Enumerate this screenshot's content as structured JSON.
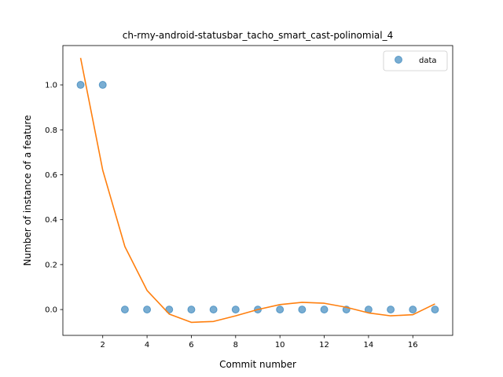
{
  "chart_data": {
    "type": "scatter",
    "title": "ch-rmy-android-statusbar_tacho_smart_cast-polinomial_4",
    "xlabel": "Commit number",
    "ylabel": "Number of instance of a feature",
    "xlim": [
      0.2,
      17.8
    ],
    "ylim": [
      -0.115,
      1.175
    ],
    "x_ticks": [
      2,
      4,
      6,
      8,
      10,
      12,
      14,
      16
    ],
    "y_ticks": [
      0.0,
      0.2,
      0.4,
      0.6,
      0.8,
      1.0
    ],
    "grid": false,
    "legend_position": "top-right",
    "series": [
      {
        "name": "data",
        "kind": "scatter",
        "color": "#1f77b4",
        "x": [
          1,
          2,
          3,
          4,
          5,
          6,
          7,
          8,
          9,
          10,
          11,
          12,
          13,
          14,
          15,
          16,
          17
        ],
        "y": [
          1,
          1,
          0,
          0,
          0,
          0,
          0,
          0,
          0,
          0,
          0,
          0,
          0,
          0,
          0,
          0,
          0
        ]
      },
      {
        "kind": "line",
        "color": "#ff7f0e",
        "x": [
          1,
          2,
          3,
          4,
          5,
          6,
          7,
          8,
          9,
          10,
          11,
          12,
          13,
          14,
          15,
          16,
          17
        ],
        "y": [
          1.12,
          0.62,
          0.28,
          0.085,
          -0.02,
          -0.057,
          -0.053,
          -0.028,
          0.0,
          0.022,
          0.032,
          0.028,
          0.01,
          -0.015,
          -0.028,
          -0.023,
          0.025
        ]
      }
    ]
  }
}
